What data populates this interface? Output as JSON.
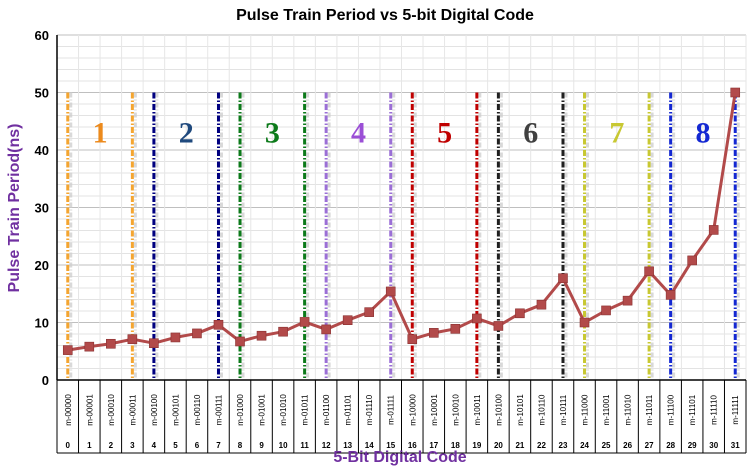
{
  "chart_data": {
    "type": "line",
    "title": "Pulse Train Period vs 5-bit Digital Code",
    "xlabel": "5-Bit Digital Code",
    "ylabel": "Pulse Train Period(ns)",
    "ylim": [
      0,
      60
    ],
    "yticks": [
      "0",
      "10",
      "20",
      "30",
      "40",
      "50",
      "60"
    ],
    "grid": true,
    "categories": [
      "m-00000",
      "m-00001",
      "m-00010",
      "m-00011",
      "m-00100",
      "m-00101",
      "m-00110",
      "m-00111",
      "m-01000",
      "m-01001",
      "m-01010",
      "m-01011",
      "m-01100",
      "m-01101",
      "m-01110",
      "m-01111",
      "m-10000",
      "m-10001",
      "m-10010",
      "m-10011",
      "m-10100",
      "m-10101",
      "m-10110",
      "m-10111",
      "m-11000",
      "m-11001",
      "m-11010",
      "m-11011",
      "m-11100",
      "m-11101",
      "m-11110",
      "m-11111"
    ],
    "index_labels": [
      "0",
      "1",
      "2",
      "3",
      "4",
      "5",
      "6",
      "7",
      "8",
      "9",
      "10",
      "11",
      "12",
      "13",
      "14",
      "15",
      "16",
      "17",
      "18",
      "19",
      "20",
      "21",
      "22",
      "23",
      "24",
      "25",
      "26",
      "27",
      "28",
      "29",
      "30",
      "31"
    ],
    "series": [
      {
        "color": "#b24a4a",
        "values": [
          5.2,
          5.8,
          6.3,
          7.1,
          6.4,
          7.4,
          8.1,
          9.6,
          6.7,
          7.7,
          8.4,
          10.1,
          8.8,
          10.4,
          11.8,
          15.4,
          7.1,
          8.2,
          8.9,
          10.7,
          9.4,
          11.6,
          13.1,
          17.7,
          10.0,
          12.1,
          13.8,
          18.9,
          14.8,
          20.8,
          26.1,
          50.0
        ]
      }
    ],
    "groups": [
      {
        "label": "1",
        "color": "#ec8a1c",
        "start": 0,
        "end": 3
      },
      {
        "label": "2",
        "color": "#1f497d",
        "start": 4,
        "end": 7
      },
      {
        "label": "3",
        "color": "#0c7a1a",
        "start": 8,
        "end": 11
      },
      {
        "label": "4",
        "color": "#9b4fd6",
        "start": 12,
        "end": 15
      },
      {
        "label": "5",
        "color": "#c00000",
        "start": 16,
        "end": 19
      },
      {
        "label": "6",
        "color": "#404040",
        "start": 20,
        "end": 23
      },
      {
        "label": "7",
        "color": "#c8c832",
        "start": 24,
        "end": 27
      },
      {
        "label": "8",
        "color": "#1428d2",
        "start": 28,
        "end": 31
      }
    ],
    "divider_colors": [
      "#f4a530",
      "#f4a530",
      "#000080",
      "#000080",
      "#0c7a1a",
      "#0c7a1a",
      "#9b6fd6",
      "#9b6fd6",
      "#c00000",
      "#c00000",
      "#202020",
      "#202020",
      "#c8c832",
      "#c8c832",
      "#1428d2",
      "#1428d2"
    ]
  }
}
